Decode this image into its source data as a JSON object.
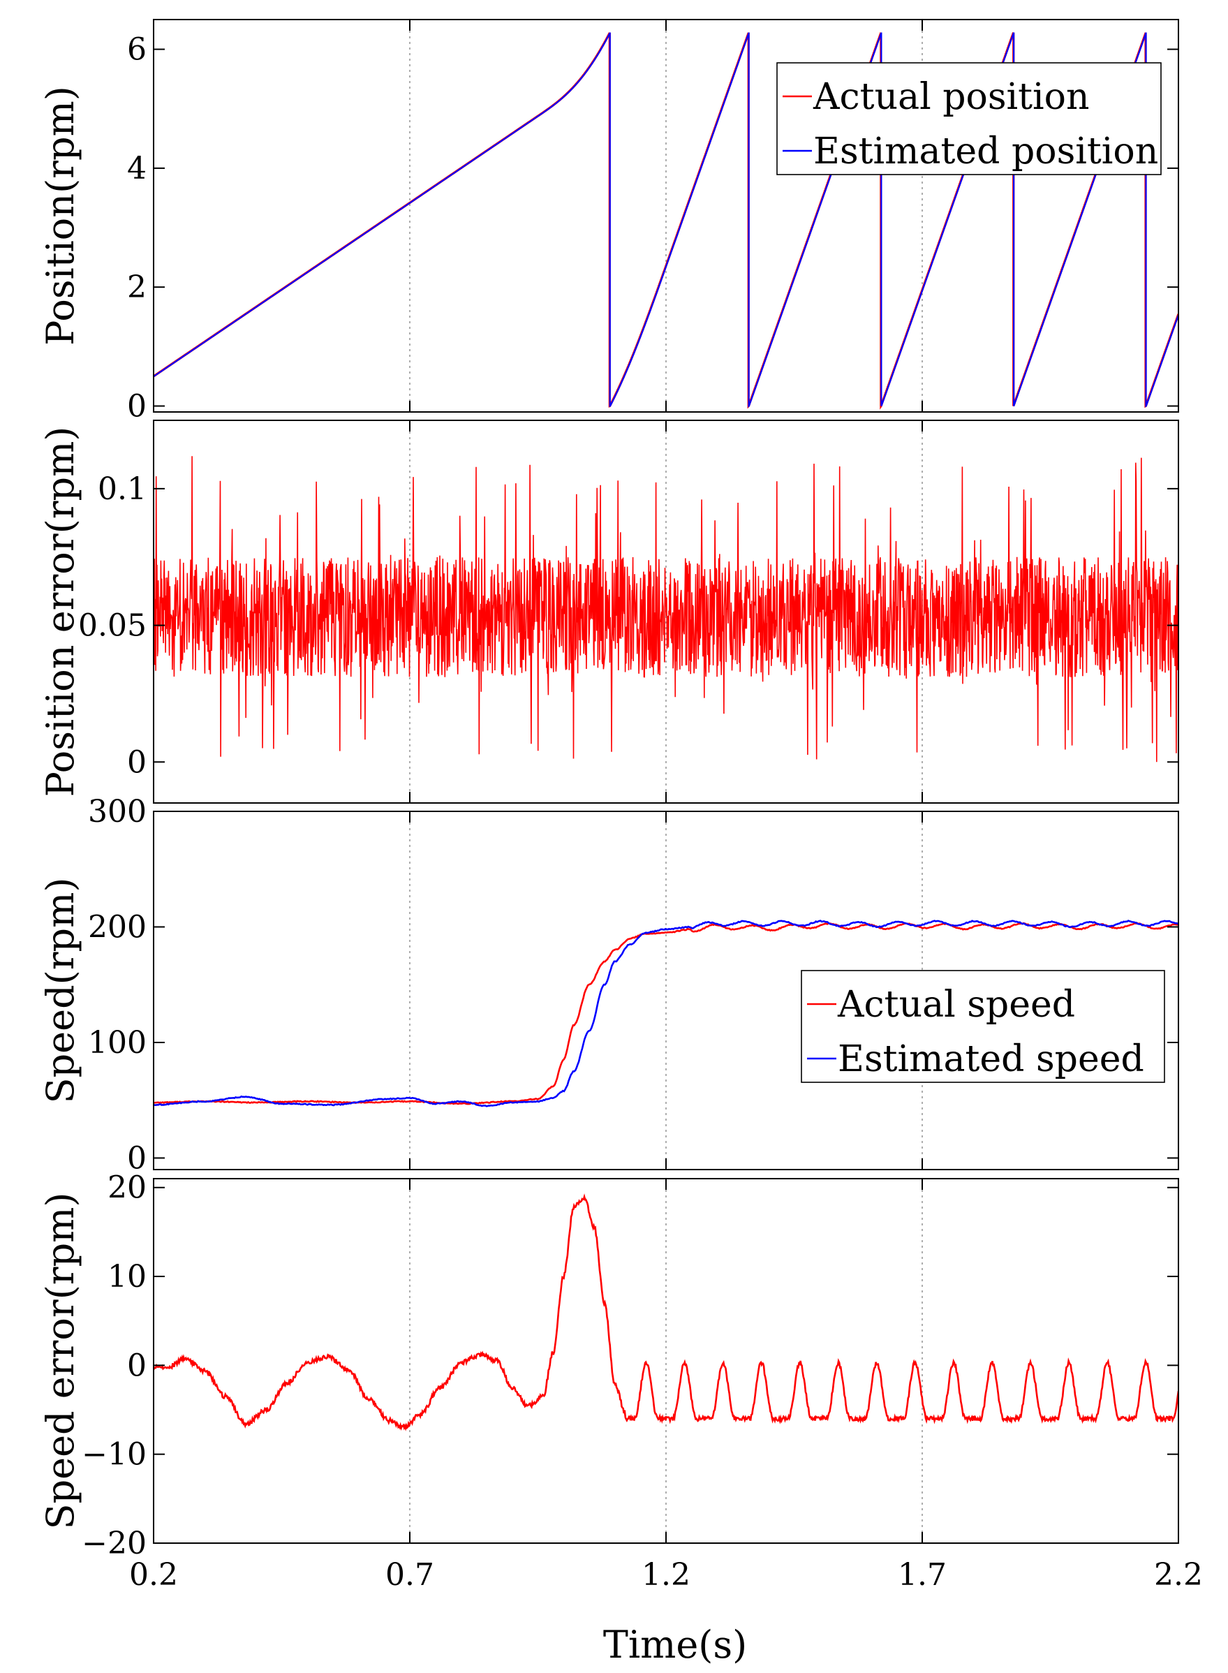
{
  "figure": {
    "xlabel": "Time(s)",
    "colors": {
      "actual": "#ff0000",
      "estimated": "#0000ff",
      "grid": "#999999",
      "axis": "#000000"
    }
  },
  "chart_data": [
    {
      "id": "position",
      "type": "line",
      "title": "",
      "xlabel": "",
      "ylabel": "Position(rpm)",
      "xlim": [
        0.2,
        2.2
      ],
      "ylim": [
        -0.1,
        6.5
      ],
      "xticks": [
        0.2,
        0.7,
        1.2,
        1.7,
        2.2
      ],
      "xtick_labels_shown": false,
      "yticks": [
        0,
        2,
        4,
        6
      ],
      "ytick_labels": [
        "0",
        "2",
        "4",
        "6"
      ],
      "grid": "x-dotted",
      "legend": {
        "position": "top-right",
        "entries": [
          {
            "label": "Actual position",
            "color": "#ff0000"
          },
          {
            "label": "Estimated position",
            "color": "#0000ff"
          }
        ]
      },
      "model": {
        "period_seconds": 6.2832,
        "speed_segments": [
          {
            "t_start": 0.2,
            "t_end": 0.95,
            "rpm": 48
          },
          {
            "t_start": 0.95,
            "t_end": 1.2,
            "rpm_from": 48,
            "rpm_to": 200
          },
          {
            "t_start": 1.2,
            "t_end": 2.2,
            "rpm": 200
          }
        ]
      },
      "series": [
        {
          "name": "Actual position",
          "color": "#ff0000"
        },
        {
          "name": "Estimated position",
          "color": "#0000ff"
        }
      ]
    },
    {
      "id": "position_error",
      "type": "line",
      "title": "",
      "xlabel": "",
      "ylabel": "Position error(rpm)",
      "xlim": [
        0.2,
        2.2
      ],
      "ylim": [
        -0.015,
        0.125
      ],
      "xticks": [
        0.2,
        0.7,
        1.2,
        1.7,
        2.2
      ],
      "xtick_labels_shown": false,
      "yticks": [
        0,
        0.05,
        0.1
      ],
      "ytick_labels": [
        "0",
        "0.05",
        "0.1"
      ],
      "grid": "x-dotted",
      "noise_model": {
        "mean": 0.053,
        "typical_band": [
          0.03,
          0.07
        ],
        "min": 0.0,
        "max": 0.112,
        "samples": 2400
      },
      "series": [
        {
          "name": "Position error",
          "color": "#ff0000"
        }
      ]
    },
    {
      "id": "speed",
      "type": "line",
      "title": "",
      "xlabel": "",
      "ylabel": "Speed(rpm)",
      "xlim": [
        0.2,
        2.2
      ],
      "ylim": [
        -10,
        300
      ],
      "xticks": [
        0.2,
        0.7,
        1.2,
        1.7,
        2.2
      ],
      "xtick_labels_shown": false,
      "yticks": [
        0,
        100,
        200,
        300
      ],
      "ytick_labels": [
        "0",
        "100",
        "200",
        "300"
      ],
      "grid": "x-dotted",
      "legend": {
        "position": "lower-right",
        "entries": [
          {
            "label": "Actual speed",
            "color": "#ff0000"
          },
          {
            "label": "Estimated speed",
            "color": "#0000ff"
          }
        ]
      },
      "series": [
        {
          "name": "Actual speed",
          "color": "#ff0000",
          "x": [
            0.2,
            0.3,
            0.4,
            0.5,
            0.6,
            0.7,
            0.8,
            0.9,
            0.95,
            0.98,
            1.0,
            1.02,
            1.05,
            1.08,
            1.1,
            1.13,
            1.16,
            1.2,
            1.25,
            1.3,
            1.4,
            1.5,
            1.6,
            1.7,
            1.8,
            1.9,
            2.0,
            2.1,
            2.2
          ],
          "y": [
            48,
            49,
            48,
            49,
            48,
            49,
            47,
            49,
            51,
            62,
            85,
            115,
            150,
            170,
            180,
            190,
            194,
            195,
            198,
            200,
            199,
            201,
            200,
            201,
            200,
            201,
            200,
            201,
            200
          ]
        },
        {
          "name": "Estimated speed",
          "color": "#0000ff",
          "x": [
            0.2,
            0.3,
            0.38,
            0.45,
            0.55,
            0.65,
            0.7,
            0.75,
            0.8,
            0.85,
            0.9,
            0.95,
            0.98,
            1.0,
            1.02,
            1.05,
            1.08,
            1.1,
            1.13,
            1.16,
            1.2,
            1.25,
            1.3,
            1.4,
            1.5,
            1.6,
            1.7,
            1.8,
            1.9,
            2.0,
            2.1,
            2.2
          ],
          "y": [
            46,
            49,
            53,
            47,
            46,
            51,
            52,
            47,
            49,
            45,
            48,
            49,
            52,
            58,
            75,
            110,
            150,
            170,
            185,
            195,
            198,
            200,
            203,
            203,
            203,
            202,
            203,
            203,
            203,
            202,
            203,
            203
          ]
        }
      ]
    },
    {
      "id": "speed_error",
      "type": "line",
      "title": "",
      "xlabel": "Time(s)",
      "ylabel": "Speed error(rpm)",
      "xlim": [
        0.2,
        2.2
      ],
      "ylim": [
        -20,
        21
      ],
      "xticks": [
        0.2,
        0.7,
        1.2,
        1.7,
        2.2
      ],
      "xtick_labels": [
        "0.2",
        "0.7",
        "1.2",
        "1.7",
        "2.2"
      ],
      "xtick_labels_shown": true,
      "yticks": [
        -20,
        -10,
        0,
        10,
        20
      ],
      "ytick_labels": [
        "−20",
        "−10",
        "0",
        "10",
        "20"
      ],
      "grid": "x-dotted",
      "oscillation_after_1_12s": {
        "period": 0.075,
        "min": -6,
        "max": 0.3
      },
      "series": [
        {
          "name": "Speed error",
          "color": "#ff0000",
          "x": [
            0.2,
            0.23,
            0.26,
            0.3,
            0.34,
            0.38,
            0.42,
            0.46,
            0.5,
            0.54,
            0.58,
            0.62,
            0.66,
            0.69,
            0.72,
            0.76,
            0.8,
            0.84,
            0.87,
            0.9,
            0.93,
            0.96,
            0.98,
            1.0,
            1.02,
            1.04,
            1.06,
            1.08,
            1.1,
            1.12
          ],
          "y": [
            -0.2,
            -0.2,
            0.8,
            -0.6,
            -3.5,
            -6.6,
            -5.0,
            -2.0,
            0.3,
            1.0,
            -0.5,
            -3.8,
            -6.2,
            -7.0,
            -5.5,
            -2.5,
            0.3,
            1.2,
            0.5,
            -2.5,
            -4.6,
            -3.5,
            1.5,
            10.0,
            17.8,
            18.9,
            15.5,
            7.0,
            -2.0,
            -5.3
          ]
        }
      ]
    }
  ]
}
